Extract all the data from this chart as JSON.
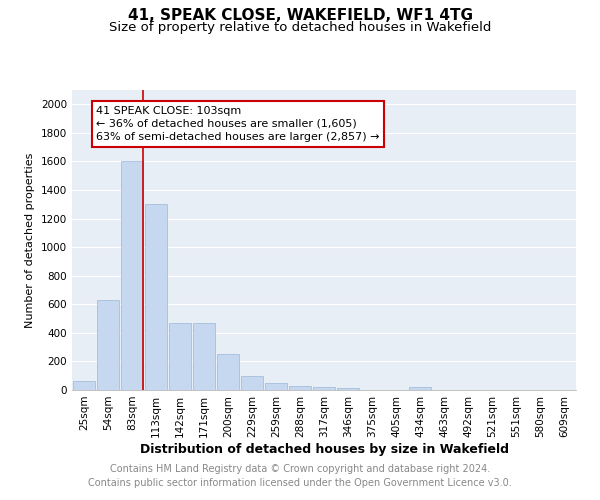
{
  "title": "41, SPEAK CLOSE, WAKEFIELD, WF1 4TG",
  "subtitle": "Size of property relative to detached houses in Wakefield",
  "xlabel": "Distribution of detached houses by size in Wakefield",
  "ylabel": "Number of detached properties",
  "categories": [
    "25sqm",
    "54sqm",
    "83sqm",
    "113sqm",
    "142sqm",
    "171sqm",
    "200sqm",
    "229sqm",
    "259sqm",
    "288sqm",
    "317sqm",
    "346sqm",
    "375sqm",
    "405sqm",
    "434sqm",
    "463sqm",
    "492sqm",
    "521sqm",
    "551sqm",
    "580sqm",
    "609sqm"
  ],
  "values": [
    65,
    630,
    1600,
    1300,
    470,
    470,
    250,
    100,
    50,
    30,
    20,
    15,
    0,
    0,
    20,
    0,
    0,
    0,
    0,
    0,
    0
  ],
  "bar_color": "#c5d8f0",
  "bar_edge_color": "#9ab8d8",
  "vline_x_index": 2,
  "vline_color": "#cc0000",
  "annotation_text": "41 SPEAK CLOSE: 103sqm\n← 36% of detached houses are smaller (1,605)\n63% of semi-detached houses are larger (2,857) →",
  "annotation_box_facecolor": "#ffffff",
  "annotation_box_edgecolor": "#cc0000",
  "ylim": [
    0,
    2100
  ],
  "yticks": [
    0,
    200,
    400,
    600,
    800,
    1000,
    1200,
    1400,
    1600,
    1800,
    2000
  ],
  "bg_color": "#e8eef6",
  "grid_color": "#ffffff",
  "footer_text": "Contains HM Land Registry data © Crown copyright and database right 2024.\nContains public sector information licensed under the Open Government Licence v3.0.",
  "title_fontsize": 11,
  "subtitle_fontsize": 9.5,
  "xlabel_fontsize": 9,
  "ylabel_fontsize": 8,
  "tick_fontsize": 7.5,
  "annot_fontsize": 8,
  "footer_fontsize": 7
}
